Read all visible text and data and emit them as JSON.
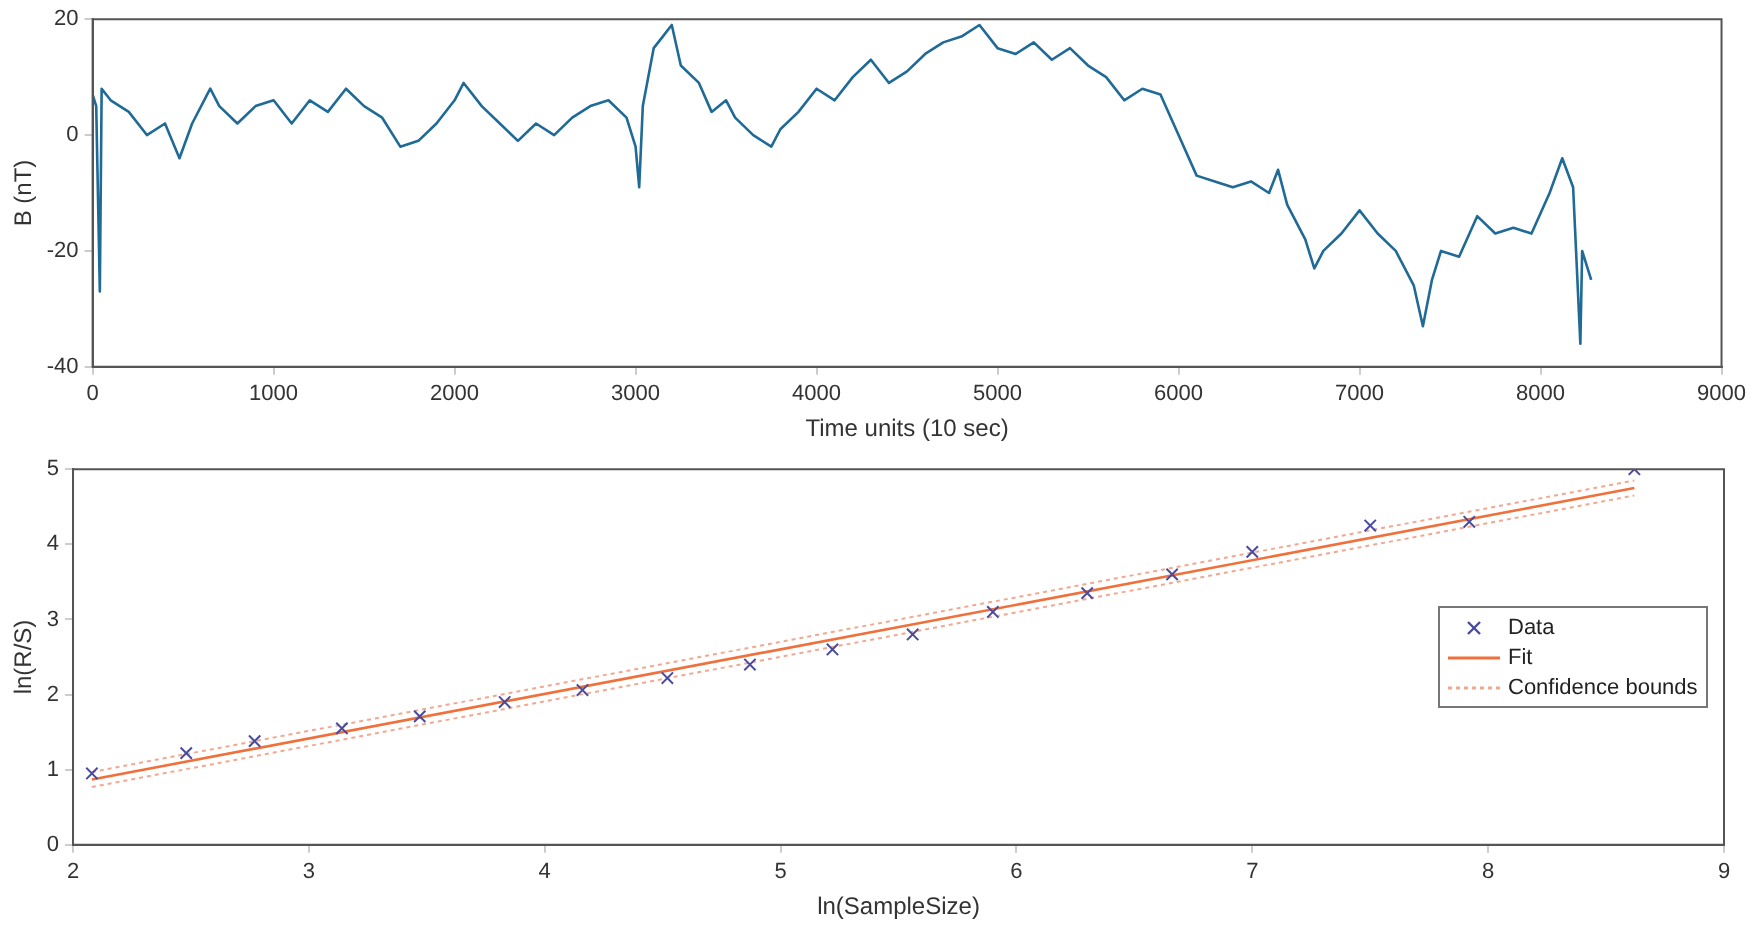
{
  "chart_data": [
    {
      "type": "line",
      "xlabel": "Time units (10 sec)",
      "ylabel": "B (nT)",
      "xlim": [
        0,
        9000
      ],
      "xticks": [
        0,
        1000,
        2000,
        3000,
        4000,
        5000,
        6000,
        7000,
        8000,
        9000
      ],
      "ylim": [
        -40,
        20
      ],
      "yticks": [
        -40,
        -20,
        0,
        20
      ],
      "grid": false,
      "legend": false,
      "x": [
        0,
        20,
        40,
        50,
        100,
        200,
        300,
        400,
        480,
        550,
        650,
        700,
        800,
        900,
        1000,
        1100,
        1200,
        1300,
        1400,
        1500,
        1600,
        1700,
        1800,
        1900,
        2000,
        2050,
        2150,
        2250,
        2350,
        2450,
        2550,
        2650,
        2750,
        2850,
        2950,
        3000,
        3020,
        3040,
        3100,
        3150,
        3200,
        3250,
        3350,
        3420,
        3500,
        3550,
        3650,
        3750,
        3800,
        3900,
        4000,
        4100,
        4200,
        4300,
        4400,
        4500,
        4600,
        4700,
        4800,
        4900,
        5000,
        5100,
        5200,
        5300,
        5400,
        5500,
        5600,
        5700,
        5800,
        5900,
        6000,
        6100,
        6200,
        6300,
        6400,
        6500,
        6550,
        6600,
        6700,
        6750,
        6800,
        6900,
        7000,
        7100,
        7200,
        7300,
        7350,
        7400,
        7450,
        7550,
        7650,
        7750,
        7850,
        7950,
        8050,
        8120,
        8180,
        8220,
        8230,
        8260,
        8280
      ],
      "series": [
        {
          "color": "#1f6a96",
          "values": [
            7,
            5,
            -27,
            8,
            6,
            4,
            0,
            2,
            -4,
            2,
            8,
            5,
            2,
            5,
            6,
            2,
            6,
            4,
            8,
            5,
            3,
            -2,
            -1,
            2,
            6,
            9,
            5,
            2,
            -1,
            2,
            0,
            3,
            5,
            6,
            3,
            -2,
            -9,
            5,
            15,
            17,
            19,
            12,
            9,
            4,
            6,
            3,
            0,
            -2,
            1,
            4,
            8,
            6,
            10,
            13,
            9,
            11,
            14,
            16,
            17,
            19,
            15,
            14,
            16,
            13,
            15,
            12,
            10,
            6,
            8,
            7,
            0,
            -7,
            -8,
            -9,
            -8,
            -10,
            -6,
            -12,
            -18,
            -23,
            -20,
            -17,
            -13,
            -17,
            -20,
            -26,
            -33,
            -25,
            -20,
            -21,
            -14,
            -17,
            -16,
            -17,
            -10,
            -4,
            -9,
            -36,
            -20,
            -23,
            -25
          ]
        }
      ]
    },
    {
      "type": "scatter",
      "xlabel": "ln(SampleSize)",
      "ylabel": "ln(R/S)",
      "xlim": [
        2,
        9
      ],
      "xticks": [
        2,
        3,
        4,
        5,
        6,
        7,
        8,
        9
      ],
      "ylim": [
        0,
        5
      ],
      "yticks": [
        0,
        1,
        2,
        3,
        4,
        5
      ],
      "grid": false,
      "legend": "right",
      "series": [
        {
          "name": "Data",
          "type": "scatter",
          "marker": "cross",
          "color": "#4b4b9e",
          "x": [
            2.08,
            2.48,
            2.77,
            3.14,
            3.47,
            3.83,
            4.16,
            4.52,
            4.87,
            5.22,
            5.56,
            5.9,
            6.3,
            6.66,
            7.0,
            7.5,
            7.92,
            8.62
          ],
          "values": [
            0.95,
            1.22,
            1.38,
            1.55,
            1.71,
            1.9,
            2.06,
            2.22,
            2.4,
            2.6,
            2.8,
            3.1,
            3.35,
            3.6,
            3.9,
            4.25,
            4.3,
            5.0
          ]
        },
        {
          "name": "Fit",
          "type": "line",
          "color": "#f0703c",
          "x": [
            2.08,
            8.62
          ],
          "values": [
            0.87,
            4.75
          ]
        },
        {
          "name": "Confidence bounds",
          "type": "line",
          "line_style": "dotted",
          "color": "#f2a890",
          "x": [
            2.08,
            8.62
          ],
          "values": [
            0.97,
            4.85
          ]
        },
        {
          "type": "line",
          "line_style": "dotted",
          "color": "#f2a890",
          "x": [
            2.08,
            8.62
          ],
          "values": [
            0.77,
            4.65
          ]
        }
      ]
    }
  ]
}
